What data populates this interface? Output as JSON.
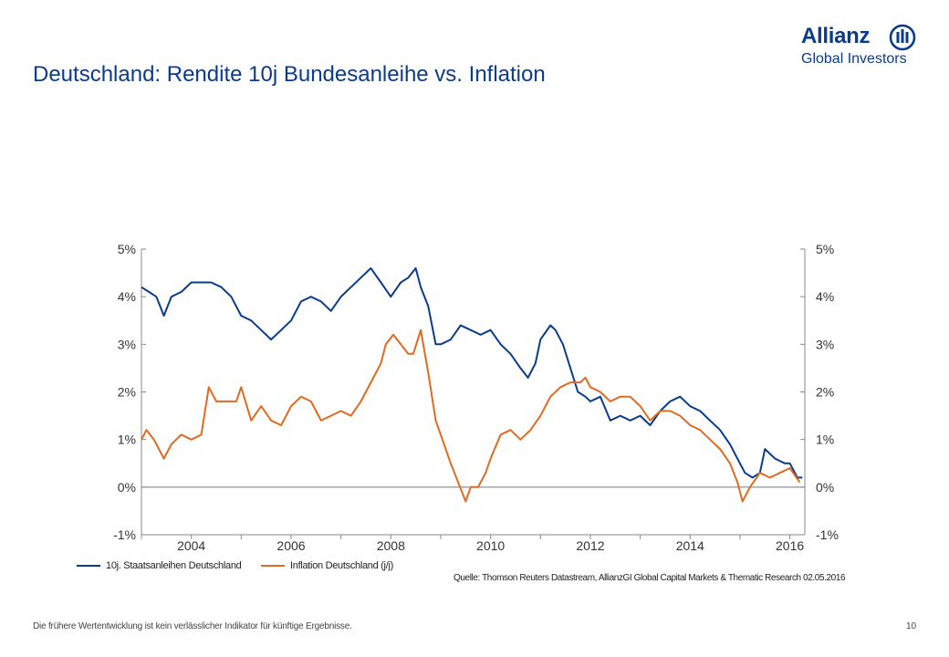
{
  "header": {
    "title": "Deutschland: Rendite 10j Bundesanleihe vs. Inflation",
    "brand": {
      "name": "Allianz",
      "tagline": "Global Investors",
      "logo_icon": "allianz-eagle-icon"
    }
  },
  "colors": {
    "yield": "#0b3c8c",
    "inflation": "#e06b20",
    "axis": "#888888",
    "zero_line": "#777777"
  },
  "chart_data": {
    "type": "line",
    "title": "",
    "xlabel": "",
    "ylabel": "",
    "xlim": [
      2003.0,
      2016.3
    ],
    "ylim": [
      -1,
      5
    ],
    "y_unit": "%",
    "x_ticks": [
      2004,
      2006,
      2008,
      2010,
      2012,
      2014,
      2016
    ],
    "x_tick_labels": [
      "2004",
      "2006",
      "2008",
      "2010",
      "2012",
      "2014",
      "2016"
    ],
    "y_ticks": [
      -1,
      0,
      1,
      2,
      3,
      4,
      5
    ],
    "y_tick_labels_left": [
      "-1%",
      "0%",
      "1%",
      "2%",
      "3%",
      "4%",
      "5%"
    ],
    "y_tick_labels_right": [
      "-1%",
      "0%",
      "1%",
      "2%",
      "3%",
      "4%",
      "5%"
    ],
    "grid": false,
    "legend_position": "bottom-left",
    "series": [
      {
        "name": "10j. Staatsanleihen Deutschland",
        "x": [
          2003.0,
          2003.15,
          2003.3,
          2003.45,
          2003.6,
          2003.8,
          2004.0,
          2004.2,
          2004.4,
          2004.6,
          2004.8,
          2005.0,
          2005.2,
          2005.4,
          2005.6,
          2005.8,
          2006.0,
          2006.2,
          2006.4,
          2006.6,
          2006.8,
          2007.0,
          2007.2,
          2007.4,
          2007.6,
          2007.8,
          2008.0,
          2008.2,
          2008.35,
          2008.5,
          2008.6,
          2008.75,
          2008.9,
          2009.0,
          2009.2,
          2009.4,
          2009.6,
          2009.8,
          2010.0,
          2010.2,
          2010.4,
          2010.6,
          2010.75,
          2010.9,
          2011.0,
          2011.2,
          2011.3,
          2011.45,
          2011.6,
          2011.75,
          2011.9,
          2012.0,
          2012.2,
          2012.4,
          2012.6,
          2012.8,
          2013.0,
          2013.2,
          2013.4,
          2013.6,
          2013.8,
          2014.0,
          2014.2,
          2014.4,
          2014.6,
          2014.8,
          2015.0,
          2015.1,
          2015.25,
          2015.4,
          2015.5,
          2015.7,
          2015.9,
          2016.0,
          2016.15,
          2016.25
        ],
        "values": [
          4.2,
          4.1,
          4.0,
          3.6,
          4.0,
          4.1,
          4.3,
          4.3,
          4.3,
          4.2,
          4.0,
          3.6,
          3.5,
          3.3,
          3.1,
          3.3,
          3.5,
          3.9,
          4.0,
          3.9,
          3.7,
          4.0,
          4.2,
          4.4,
          4.6,
          4.3,
          4.0,
          4.3,
          4.4,
          4.6,
          4.2,
          3.8,
          3.0,
          3.0,
          3.1,
          3.4,
          3.3,
          3.2,
          3.3,
          3.0,
          2.8,
          2.5,
          2.3,
          2.6,
          3.1,
          3.4,
          3.3,
          3.0,
          2.5,
          2.0,
          1.9,
          1.8,
          1.9,
          1.4,
          1.5,
          1.4,
          1.5,
          1.3,
          1.6,
          1.8,
          1.9,
          1.7,
          1.6,
          1.4,
          1.2,
          0.9,
          0.5,
          0.3,
          0.2,
          0.3,
          0.8,
          0.6,
          0.5,
          0.5,
          0.2,
          0.2
        ]
      },
      {
        "name": "Inflation Deutschland (j/j)",
        "x": [
          2003.0,
          2003.1,
          2003.25,
          2003.45,
          2003.6,
          2003.8,
          2004.0,
          2004.2,
          2004.35,
          2004.5,
          2004.7,
          2004.9,
          2005.0,
          2005.2,
          2005.4,
          2005.6,
          2005.8,
          2006.0,
          2006.2,
          2006.4,
          2006.6,
          2006.8,
          2007.0,
          2007.2,
          2007.4,
          2007.6,
          2007.8,
          2007.9,
          2008.05,
          2008.2,
          2008.35,
          2008.45,
          2008.6,
          2008.75,
          2008.9,
          2009.0,
          2009.2,
          2009.35,
          2009.5,
          2009.6,
          2009.75,
          2009.9,
          2010.0,
          2010.2,
          2010.4,
          2010.6,
          2010.8,
          2011.0,
          2011.2,
          2011.4,
          2011.6,
          2011.8,
          2011.9,
          2012.0,
          2012.2,
          2012.4,
          2012.6,
          2012.8,
          2013.0,
          2013.2,
          2013.4,
          2013.6,
          2013.8,
          2014.0,
          2014.2,
          2014.4,
          2014.6,
          2014.8,
          2014.95,
          2015.05,
          2015.2,
          2015.4,
          2015.6,
          2015.8,
          2016.0,
          2016.2
        ],
        "values": [
          1.0,
          1.2,
          1.0,
          0.6,
          0.9,
          1.1,
          1.0,
          1.1,
          2.1,
          1.8,
          1.8,
          1.8,
          2.1,
          1.4,
          1.7,
          1.4,
          1.3,
          1.7,
          1.9,
          1.8,
          1.4,
          1.5,
          1.6,
          1.5,
          1.8,
          2.2,
          2.6,
          3.0,
          3.2,
          3.0,
          2.8,
          2.8,
          3.3,
          2.4,
          1.4,
          1.1,
          0.5,
          0.1,
          -0.3,
          0.0,
          0.0,
          0.3,
          0.6,
          1.1,
          1.2,
          1.0,
          1.2,
          1.5,
          1.9,
          2.1,
          2.2,
          2.2,
          2.3,
          2.1,
          2.0,
          1.8,
          1.9,
          1.9,
          1.7,
          1.4,
          1.6,
          1.6,
          1.5,
          1.3,
          1.2,
          1.0,
          0.8,
          0.5,
          0.1,
          -0.3,
          0.0,
          0.3,
          0.2,
          0.3,
          0.4,
          0.1
        ]
      }
    ]
  },
  "source_text": "Quelle: Thomson Reuters Datastream, AllianzGI Global Capital Markets & Thematic Research 02.05.2016",
  "footer": {
    "disclaimer": "Die frühere Wertentwicklung ist kein verlässlicher Indikator für künftige Ergebnisse.",
    "page_number": "10"
  }
}
